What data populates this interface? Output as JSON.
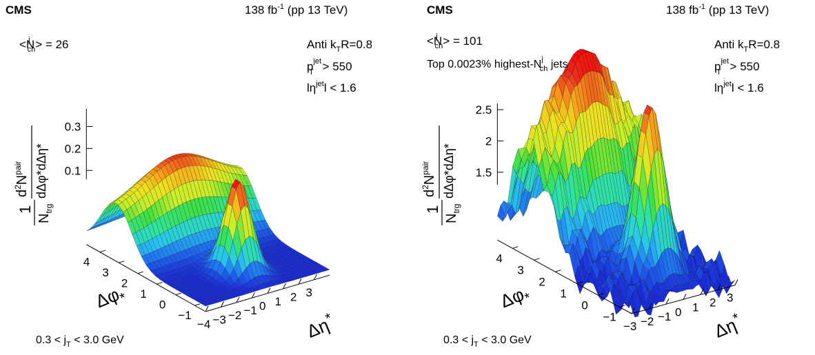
{
  "chart_data": [
    {
      "type": "surface",
      "experiment": "CMS",
      "luminosity": "138 fb",
      "lumi_exp": "-1",
      "energy": "(pp 13 TeV)",
      "nch_label": "<N",
      "nch_sup": "j",
      "nch_sub": "ch",
      "nch_value": "> = 26",
      "selection_note": "",
      "note_pre": "",
      "note_sup": "",
      "note_sub": "",
      "note_post": "",
      "jet_label": "Anti k",
      "jet_sub": "T",
      "jet_radius": "R=0.8",
      "pt_label": "p",
      "pt_sub": "T",
      "pt_sup": "jet",
      "pt_cut": " > 550",
      "eta_pre": "lη",
      "eta_sup": "jet",
      "eta_post": "l < 1.6",
      "jt_pre": "0.3 < j",
      "jt_sub": "T",
      "jt_post": " < 3.0 GeV",
      "z_label_num": "d",
      "z_label_num_sup": "2",
      "z_label_num_main": "N",
      "z_label_num_sup2": "pair",
      "z_label_den": "dΔφ*dΔη*",
      "z_label_prefactor": "1",
      "z_label_ntrg": "N",
      "z_label_ntrg_sub": "trg",
      "z_ticks": [
        "0.1",
        "0.2",
        "0.3"
      ],
      "z_tick_values": [
        0.1,
        0.2,
        0.3
      ],
      "z_range": [
        0.06,
        0.38
      ],
      "phi_axis_label": "Δφ",
      "phi_axis_sub": "*",
      "phi_ticks": [
        "−1",
        "0",
        "1",
        "2",
        "3",
        "4"
      ],
      "phi_tick_values": [
        -1,
        0,
        1,
        2,
        3,
        4
      ],
      "phi_range": [
        -1.57,
        4.71
      ],
      "eta_axis_label": "Δη",
      "eta_axis_sup": "*",
      "eta_ticks": [
        "−4",
        "−3",
        "−2",
        "−1",
        "0",
        "1",
        "2",
        "3"
      ],
      "eta_tick_values": [
        -4,
        -3,
        -2,
        -1,
        0,
        1,
        2,
        3
      ],
      "eta_range": [
        -4,
        4
      ],
      "peak_height": 0.24,
      "ridge_height": 0.22,
      "baseline": 0.07,
      "colors": [
        "#1a2bd8",
        "#1f6ff2",
        "#29c6f0",
        "#2fe3a2",
        "#40e040",
        "#c8ee2a",
        "#f0e020",
        "#f59a1b",
        "#ec2b1e",
        "#ff0000"
      ]
    },
    {
      "type": "surface",
      "experiment": "CMS",
      "luminosity": "138 fb",
      "lumi_exp": "-1",
      "energy": "(pp 13 TeV)",
      "nch_label": "<N",
      "nch_sup": "j",
      "nch_sub": "ch",
      "nch_value": "> = 101",
      "selection_note": "Top 0.0023% highest-N",
      "note_pre": "Top 0.0023% highest-N",
      "note_sup": "j",
      "note_sub": "ch",
      "note_post": " jets",
      "jet_label": "Anti k",
      "jet_sub": "T",
      "jet_radius": "R=0.8",
      "pt_label": "p",
      "pt_sub": "T",
      "pt_sup": "jet",
      "pt_cut": " > 550",
      "eta_pre": "lη",
      "eta_sup": "jet",
      "eta_post": "l < 1.6",
      "jt_pre": "0.3 < j",
      "jt_sub": "T",
      "jt_post": " < 3.0 GeV",
      "z_label_num": "d",
      "z_label_num_sup": "2",
      "z_label_num_main": "N",
      "z_label_num_sup2": "pair",
      "z_label_den": "dΔφ*dΔη*",
      "z_label_prefactor": "1",
      "z_label_ntrg": "N",
      "z_label_ntrg_sub": "trg",
      "z_ticks": [
        "1.5",
        "2",
        "2.5"
      ],
      "z_tick_values": [
        1.5,
        2.0,
        2.5
      ],
      "z_range": [
        1.3,
        2.6
      ],
      "phi_axis_label": "Δφ",
      "phi_axis_sub": "*",
      "phi_ticks": [
        "−1",
        "0",
        "1",
        "2",
        "3",
        "4"
      ],
      "phi_tick_values": [
        -1,
        0,
        1,
        2,
        3,
        4
      ],
      "phi_range": [
        -1.57,
        4.71
      ],
      "eta_axis_label": "Δη",
      "eta_axis_sup": "*",
      "eta_ticks": [
        "−3",
        "−2",
        "−1",
        "0",
        "1",
        "2",
        "3"
      ],
      "eta_tick_values": [
        -3,
        -2,
        -1,
        0,
        1,
        2,
        3
      ],
      "eta_range": [
        -3,
        3
      ],
      "peak_height": 2.45,
      "ridge_height": 2.55,
      "baseline": 1.35,
      "colors": [
        "#1a2bd8",
        "#1f6ff2",
        "#29c6f0",
        "#2fe3a2",
        "#40e040",
        "#c8ee2a",
        "#f0e020",
        "#f59a1b",
        "#ec2b1e",
        "#ff0000"
      ]
    }
  ]
}
